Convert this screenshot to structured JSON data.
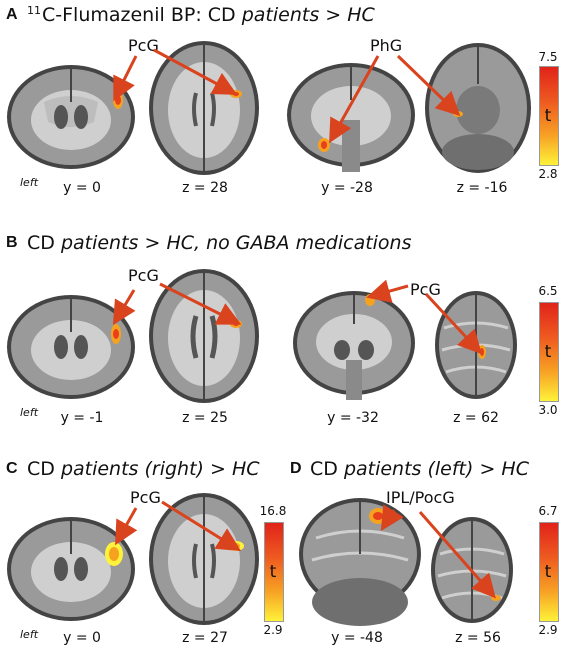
{
  "figure": {
    "panels": [
      {
        "letter": "A",
        "title_sup": "11",
        "title_pre": "C-Flumazenil BP: CD ",
        "title_em": "patients > HC",
        "slices": [
          "y = 0",
          "z = 28",
          "y = -28",
          "z = -16"
        ],
        "left_label": "left",
        "regions": [
          "PcG",
          "PhG"
        ],
        "colorbar": {
          "label": "t",
          "max": "7.5",
          "min": "2.8"
        }
      },
      {
        "letter": "B",
        "title_pre": "CD ",
        "title_em": "patients > HC, no GABA medications",
        "slices": [
          "y = -1",
          "z = 25",
          "y = -32",
          "z = 62"
        ],
        "left_label": "left",
        "regions": [
          "PcG",
          "PcG"
        ],
        "colorbar": {
          "label": "t",
          "max": "6.5",
          "min": "3.0"
        }
      },
      {
        "letter": "C",
        "title_pre": "CD ",
        "title_em": "patients (right) > HC",
        "slices": [
          "y = 0",
          "z = 27"
        ],
        "left_label": "left",
        "regions": [
          "PcG"
        ],
        "colorbar": {
          "label": "t",
          "max": "16.8",
          "min": "2.9"
        }
      },
      {
        "letter": "D",
        "title_pre": "CD ",
        "title_em": "patients (left) > HC",
        "slices": [
          "y = -48",
          "z = 56"
        ],
        "regions": [
          "IPL/PocG"
        ],
        "colorbar": {
          "label": "t",
          "max": "6.7",
          "min": "2.9"
        }
      }
    ],
    "colors": {
      "arrow": "#d9431e",
      "activation_hot": "#e8401c",
      "activation_warm": "#f7a21f",
      "brain_gray": "#8a8a8a"
    }
  }
}
